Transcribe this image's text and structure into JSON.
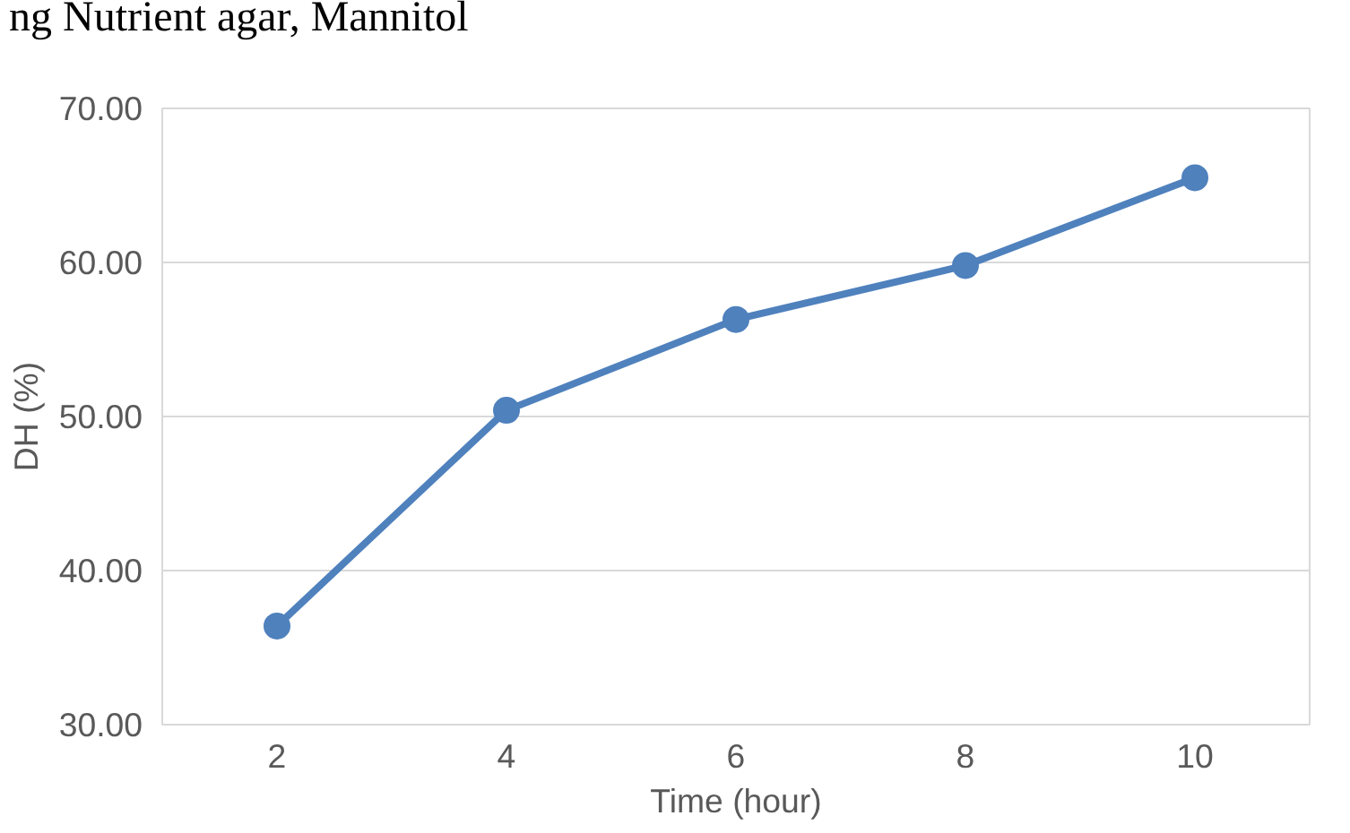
{
  "chart_data": {
    "type": "line",
    "annotations": [
      "ng Nutrient agar, Mannitol"
    ],
    "xlabel": "Time (hour)",
    "ylabel": "DH (%)",
    "categories": [
      "2",
      "4",
      "6",
      "8",
      "10"
    ],
    "series": [
      {
        "color": "#4f81bd",
        "values": [
          36.4,
          50.4,
          56.3,
          59.8,
          65.5
        ]
      }
    ],
    "ylim": [
      30,
      70
    ],
    "yticks": [
      {
        "value": 30,
        "label": "30.00"
      },
      {
        "value": 40,
        "label": "40.00"
      },
      {
        "value": 50,
        "label": "50.00"
      },
      {
        "value": 60,
        "label": "60.00"
      },
      {
        "value": 70,
        "label": "70.00"
      }
    ],
    "grid": "y",
    "marker": "circle",
    "line_style": "solid"
  }
}
